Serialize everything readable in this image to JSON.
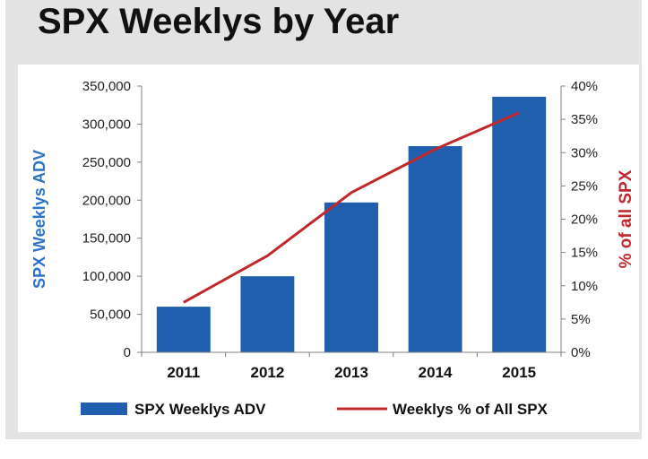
{
  "page": {
    "title": "SPX Weeklys by Year"
  },
  "colors": {
    "bar": "#1f5fad",
    "line": "#c0282d",
    "left_axis_title": "#2a73c9",
    "right_axis_title": "#c0282d",
    "frame_bg": "#e3e3e3"
  },
  "chart_data": {
    "type": "bar",
    "title": "SPX Weeklys by Year",
    "categories": [
      "2011",
      "2012",
      "2013",
      "2014",
      "2015"
    ],
    "series": [
      {
        "name": "SPX Weeklys ADV",
        "type": "bar",
        "axis": "left",
        "values": [
          60000,
          100000,
          197000,
          271000,
          336000
        ]
      },
      {
        "name": "Weeklys % of All SPX",
        "type": "line",
        "axis": "right",
        "values": [
          7.5,
          14.5,
          24.0,
          30.5,
          36.0
        ]
      }
    ],
    "ylabel": "SPX Weeklys ADV",
    "ylim": [
      0,
      350000
    ],
    "yticks": [
      "0",
      "50,000",
      "100,000",
      "150,000",
      "200,000",
      "250,000",
      "300,000",
      "350,000"
    ],
    "y2label": "% of all SPX",
    "y2lim": [
      0,
      40
    ],
    "y2ticks": [
      "0%",
      "5%",
      "10%",
      "15%",
      "20%",
      "25%",
      "30%",
      "35%",
      "40%"
    ],
    "grid": false,
    "legend": "bottom"
  }
}
